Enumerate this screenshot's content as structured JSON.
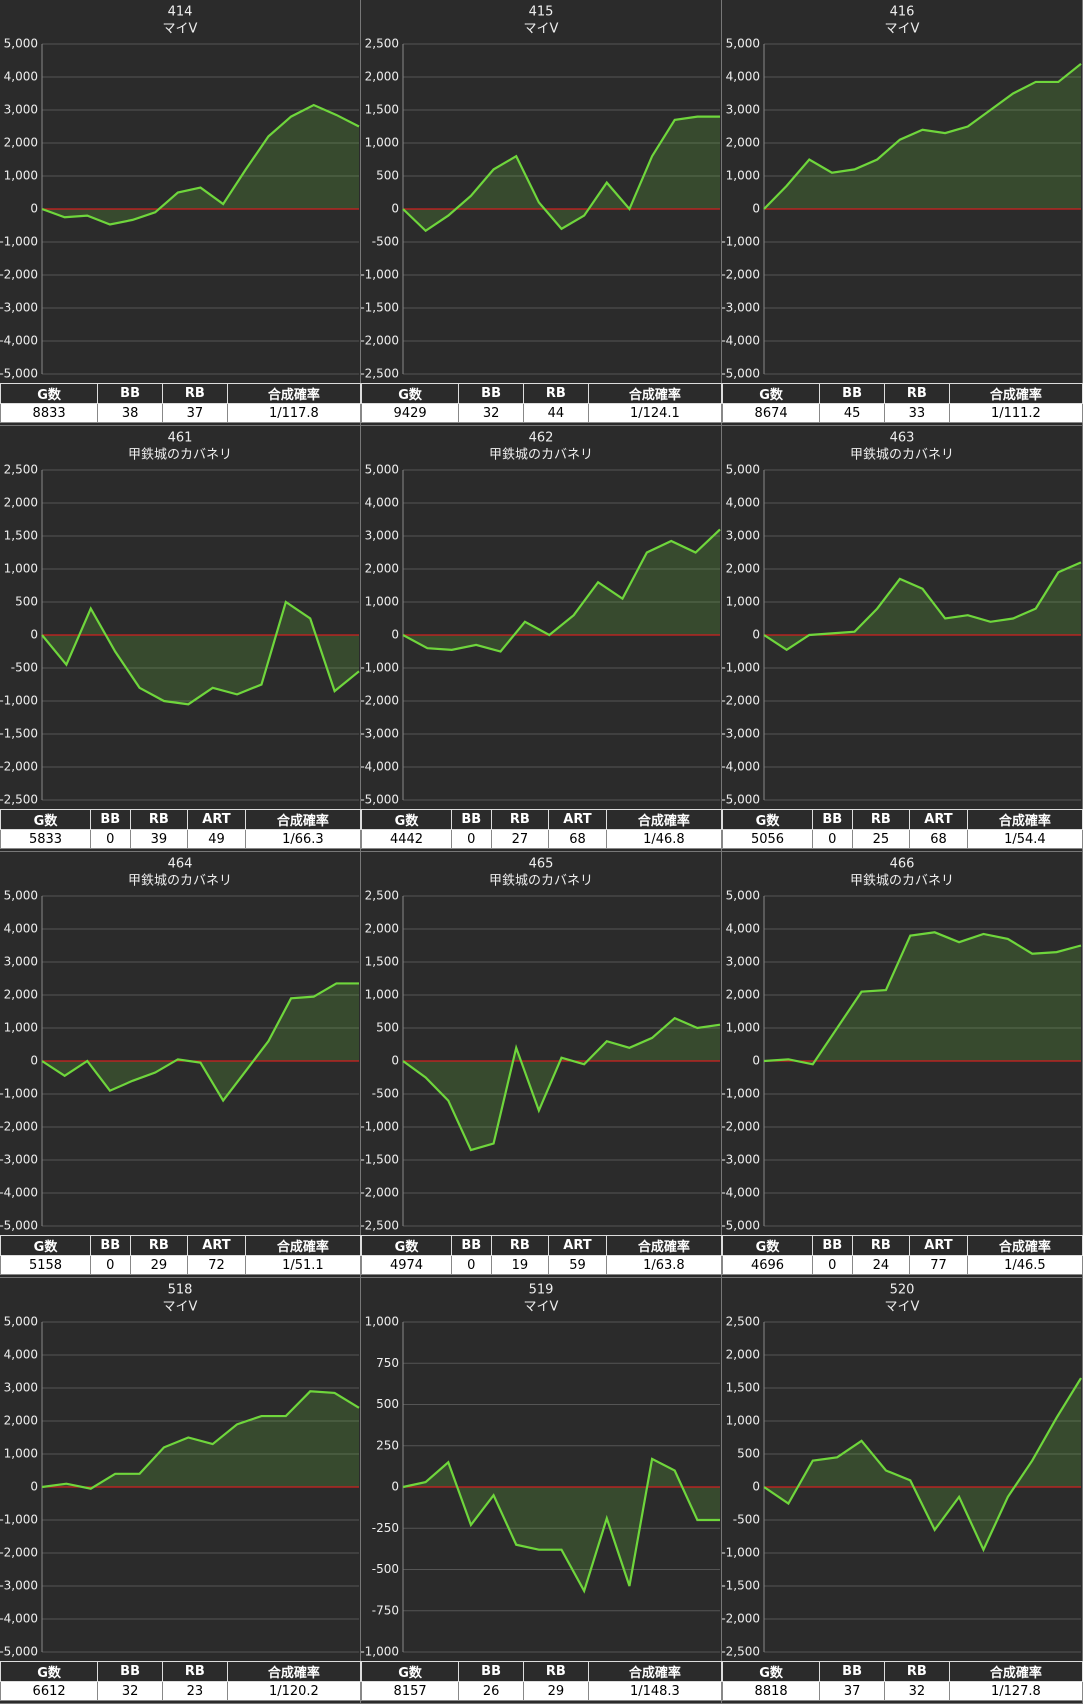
{
  "chart_data": [
    {
      "type": "line",
      "title": "414",
      "subtitle": "マイV",
      "color": "#6fd63c",
      "grid": true,
      "values": [
        0,
        -250,
        -200,
        -470,
        -330,
        -100,
        500,
        650,
        150,
        1200,
        2200,
        2800,
        3150,
        2850,
        2500
      ],
      "ylim": [
        -5000,
        5000
      ],
      "yticks": [
        {
          "value": -5000,
          "label": "-5,000"
        },
        {
          "value": -4000,
          "label": "-4,000"
        },
        {
          "value": -3000,
          "label": "-3,000"
        },
        {
          "value": -2000,
          "label": "-2,000"
        },
        {
          "value": -1000,
          "label": "-1,000"
        },
        0,
        {
          "value": 1000,
          "label": "1,000"
        },
        {
          "value": 2000,
          "label": "2,000"
        },
        {
          "value": 3000,
          "label": "3,000"
        },
        {
          "value": 4000,
          "label": "4,000"
        },
        {
          "value": 5000,
          "label": "5,000"
        }
      ],
      "table": {
        "header": [
          "G数",
          "BB",
          "RB",
          "合成確率"
        ],
        "rows": [
          [
            8833,
            38,
            37,
            "1/117.8"
          ]
        ]
      }
    },
    {
      "type": "line",
      "title": "415",
      "subtitle": "マイV",
      "color": "#6fd63c",
      "grid": true,
      "values": [
        0,
        -330,
        -100,
        200,
        600,
        800,
        100,
        -300,
        -100,
        400,
        0,
        800,
        1350,
        1400,
        1400
      ],
      "ylim": [
        -2500,
        2500
      ],
      "yticks": [
        {
          "value": -2500,
          "label": "-2,500"
        },
        {
          "value": -2000,
          "label": "-2,000"
        },
        {
          "value": -1500,
          "label": "-1,500"
        },
        {
          "value": -1000,
          "label": "-1,000"
        },
        -500,
        0,
        500,
        {
          "value": 1000,
          "label": "1,000"
        },
        {
          "value": 1500,
          "label": "1,500"
        },
        {
          "value": 2000,
          "label": "2,000"
        },
        {
          "value": 2500,
          "label": "2,500"
        }
      ],
      "table": {
        "header": [
          "G数",
          "BB",
          "RB",
          "合成確率"
        ],
        "rows": [
          [
            9429,
            32,
            44,
            "1/124.1"
          ]
        ]
      }
    },
    {
      "type": "line",
      "title": "416",
      "subtitle": "マイV",
      "color": "#6fd63c",
      "grid": true,
      "values": [
        0,
        700,
        1500,
        1100,
        1200,
        1500,
        2100,
        2400,
        2300,
        2500,
        3000,
        3500,
        3850,
        3850,
        4400
      ],
      "ylim": [
        -5000,
        5000
      ],
      "yticks": [
        {
          "value": -5000,
          "label": "-5,000"
        },
        {
          "value": -4000,
          "label": "-4,000"
        },
        {
          "value": -3000,
          "label": "-3,000"
        },
        {
          "value": -2000,
          "label": "-2,000"
        },
        {
          "value": -1000,
          "label": "-1,000"
        },
        0,
        {
          "value": 1000,
          "label": "1,000"
        },
        {
          "value": 2000,
          "label": "2,000"
        },
        {
          "value": 3000,
          "label": "3,000"
        },
        {
          "value": 4000,
          "label": "4,000"
        },
        {
          "value": 5000,
          "label": "5,000"
        }
      ],
      "table": {
        "header": [
          "G数",
          "BB",
          "RB",
          "合成確率"
        ],
        "rows": [
          [
            8674,
            45,
            33,
            "1/111.2"
          ]
        ]
      }
    },
    {
      "type": "line",
      "title": "461",
      "subtitle": "甲鉄城のカバネリ",
      "color": "#6fd63c",
      "grid": true,
      "values": [
        0,
        -450,
        400,
        -250,
        -800,
        -1000,
        -1050,
        -800,
        -900,
        -750,
        500,
        250,
        -850,
        -550
      ],
      "ylim": [
        -2500,
        2500
      ],
      "yticks": [
        {
          "value": -2500,
          "label": "-2,500"
        },
        {
          "value": -2000,
          "label": "-2,000"
        },
        {
          "value": -1500,
          "label": "-1,500"
        },
        {
          "value": -1000,
          "label": "-1,000"
        },
        -500,
        0,
        500,
        {
          "value": 1000,
          "label": "1,000"
        },
        {
          "value": 1500,
          "label": "1,500"
        },
        {
          "value": 2000,
          "label": "2,000"
        },
        {
          "value": 2500,
          "label": "2,500"
        }
      ],
      "table": {
        "header": [
          "G数",
          "BB",
          "RB",
          "ART",
          "合成確率"
        ],
        "rows": [
          [
            5833,
            0,
            39,
            49,
            "1/66.3"
          ]
        ]
      }
    },
    {
      "type": "line",
      "title": "462",
      "subtitle": "甲鉄城のカバネリ",
      "color": "#6fd63c",
      "grid": true,
      "values": [
        0,
        -400,
        -450,
        -300,
        -500,
        400,
        0,
        600,
        1600,
        1100,
        2500,
        2850,
        2500,
        3200
      ],
      "ylim": [
        -5000,
        5000
      ],
      "yticks": [
        {
          "value": -5000,
          "label": "-5,000"
        },
        {
          "value": -4000,
          "label": "-4,000"
        },
        {
          "value": -3000,
          "label": "-3,000"
        },
        {
          "value": -2000,
          "label": "-2,000"
        },
        {
          "value": -1000,
          "label": "-1,000"
        },
        0,
        {
          "value": 1000,
          "label": "1,000"
        },
        {
          "value": 2000,
          "label": "2,000"
        },
        {
          "value": 3000,
          "label": "3,000"
        },
        {
          "value": 4000,
          "label": "4,000"
        },
        {
          "value": 5000,
          "label": "5,000"
        }
      ],
      "table": {
        "header": [
          "G数",
          "BB",
          "RB",
          "ART",
          "合成確率"
        ],
        "rows": [
          [
            4442,
            0,
            27,
            68,
            "1/46.8"
          ]
        ]
      }
    },
    {
      "type": "line",
      "title": "463",
      "subtitle": "甲鉄城のカバネリ",
      "color": "#6fd63c",
      "grid": true,
      "values": [
        0,
        -450,
        0,
        50,
        100,
        800,
        1700,
        1400,
        500,
        600,
        400,
        500,
        800,
        1900,
        2200
      ],
      "ylim": [
        -5000,
        5000
      ],
      "yticks": [
        {
          "value": -5000,
          "label": "-5,000"
        },
        {
          "value": -4000,
          "label": "-4,000"
        },
        {
          "value": -3000,
          "label": "-3,000"
        },
        {
          "value": -2000,
          "label": "-2,000"
        },
        {
          "value": -1000,
          "label": "-1,000"
        },
        0,
        {
          "value": 1000,
          "label": "1,000"
        },
        {
          "value": 2000,
          "label": "2,000"
        },
        {
          "value": 3000,
          "label": "3,000"
        },
        {
          "value": 4000,
          "label": "4,000"
        },
        {
          "value": 5000,
          "label": "5,000"
        }
      ],
      "table": {
        "header": [
          "G数",
          "BB",
          "RB",
          "ART",
          "合成確率"
        ],
        "rows": [
          [
            5056,
            0,
            25,
            68,
            "1/54.4"
          ]
        ]
      }
    },
    {
      "type": "line",
      "title": "464",
      "subtitle": "甲鉄城のカバネリ",
      "color": "#6fd63c",
      "grid": true,
      "values": [
        0,
        -450,
        0,
        -900,
        -600,
        -350,
        50,
        -50,
        -1200,
        -300,
        600,
        1900,
        1950,
        2350,
        2350
      ],
      "ylim": [
        -5000,
        5000
      ],
      "yticks": [
        {
          "value": -5000,
          "label": "-5,000"
        },
        {
          "value": -4000,
          "label": "-4,000"
        },
        {
          "value": -3000,
          "label": "-3,000"
        },
        {
          "value": -2000,
          "label": "-2,000"
        },
        {
          "value": -1000,
          "label": "-1,000"
        },
        0,
        {
          "value": 1000,
          "label": "1,000"
        },
        {
          "value": 2000,
          "label": "2,000"
        },
        {
          "value": 3000,
          "label": "3,000"
        },
        {
          "value": 4000,
          "label": "4,000"
        },
        {
          "value": 5000,
          "label": "5,000"
        }
      ],
      "table": {
        "header": [
          "G数",
          "BB",
          "RB",
          "ART",
          "合成確率"
        ],
        "rows": [
          [
            5158,
            0,
            29,
            72,
            "1/51.1"
          ]
        ]
      }
    },
    {
      "type": "line",
      "title": "465",
      "subtitle": "甲鉄城のカバネリ",
      "color": "#6fd63c",
      "grid": true,
      "values": [
        0,
        -250,
        -600,
        -1350,
        -1250,
        200,
        -750,
        50,
        -50,
        300,
        200,
        350,
        650,
        500,
        550
      ],
      "ylim": [
        -2500,
        2500
      ],
      "yticks": [
        {
          "value": -2500,
          "label": "-2,500"
        },
        {
          "value": -2000,
          "label": "-2,000"
        },
        {
          "value": -1500,
          "label": "-1,500"
        },
        {
          "value": -1000,
          "label": "-1,000"
        },
        -500,
        0,
        500,
        {
          "value": 1000,
          "label": "1,000"
        },
        {
          "value": 1500,
          "label": "1,500"
        },
        {
          "value": 2000,
          "label": "2,000"
        },
        {
          "value": 2500,
          "label": "2,500"
        }
      ],
      "table": {
        "header": [
          "G数",
          "BB",
          "RB",
          "ART",
          "合成確率"
        ],
        "rows": [
          [
            4974,
            0,
            19,
            59,
            "1/63.8"
          ]
        ]
      }
    },
    {
      "type": "line",
      "title": "466",
      "subtitle": "甲鉄城のカバネリ",
      "color": "#6fd63c",
      "grid": true,
      "values": [
        0,
        50,
        -100,
        1000,
        2100,
        2150,
        3800,
        3900,
        3600,
        3850,
        3700,
        3250,
        3300,
        3500
      ],
      "ylim": [
        -5000,
        5000
      ],
      "yticks": [
        {
          "value": -5000,
          "label": "-5,000"
        },
        {
          "value": -4000,
          "label": "-4,000"
        },
        {
          "value": -3000,
          "label": "-3,000"
        },
        {
          "value": -2000,
          "label": "-2,000"
        },
        {
          "value": -1000,
          "label": "-1,000"
        },
        0,
        {
          "value": 1000,
          "label": "1,000"
        },
        {
          "value": 2000,
          "label": "2,000"
        },
        {
          "value": 3000,
          "label": "3,000"
        },
        {
          "value": 4000,
          "label": "4,000"
        },
        {
          "value": 5000,
          "label": "5,000"
        }
      ],
      "table": {
        "header": [
          "G数",
          "BB",
          "RB",
          "ART",
          "合成確率"
        ],
        "rows": [
          [
            4696,
            0,
            24,
            77,
            "1/46.5"
          ]
        ]
      }
    },
    {
      "type": "line",
      "title": "518",
      "subtitle": "マイV",
      "color": "#6fd63c",
      "grid": true,
      "values": [
        0,
        100,
        -50,
        400,
        400,
        1200,
        1500,
        1300,
        1900,
        2150,
        2150,
        2900,
        2850,
        2400
      ],
      "ylim": [
        -5000,
        5000
      ],
      "yticks": [
        {
          "value": -5000,
          "label": "-5,000"
        },
        {
          "value": -4000,
          "label": "-4,000"
        },
        {
          "value": -3000,
          "label": "-3,000"
        },
        {
          "value": -2000,
          "label": "-2,000"
        },
        {
          "value": -1000,
          "label": "-1,000"
        },
        0,
        {
          "value": 1000,
          "label": "1,000"
        },
        {
          "value": 2000,
          "label": "2,000"
        },
        {
          "value": 3000,
          "label": "3,000"
        },
        {
          "value": 4000,
          "label": "4,000"
        },
        {
          "value": 5000,
          "label": "5,000"
        }
      ],
      "table": {
        "header": [
          "G数",
          "BB",
          "RB",
          "合成確率"
        ],
        "rows": [
          [
            6612,
            32,
            23,
            "1/120.2"
          ]
        ]
      }
    },
    {
      "type": "line",
      "title": "519",
      "subtitle": "マイV",
      "color": "#6fd63c",
      "grid": true,
      "values": [
        0,
        30,
        150,
        -230,
        -50,
        -350,
        -380,
        -380,
        -630,
        -190,
        -600,
        170,
        100,
        -200,
        -200
      ],
      "ylim": [
        -1000,
        1000
      ],
      "yticks": [
        {
          "value": -1000,
          "label": "-1,000"
        },
        -750,
        -500,
        -250,
        0,
        250,
        500,
        750,
        {
          "value": 1000,
          "label": "1,000"
        }
      ],
      "table": {
        "header": [
          "G数",
          "BB",
          "RB",
          "合成確率"
        ],
        "rows": [
          [
            8157,
            26,
            29,
            "1/148.3"
          ]
        ]
      }
    },
    {
      "type": "line",
      "title": "520",
      "subtitle": "マイV",
      "color": "#6fd63c",
      "grid": true,
      "values": [
        0,
        -250,
        400,
        450,
        700,
        250,
        100,
        -650,
        -150,
        -950,
        -150,
        400,
        1050,
        1650
      ],
      "ylim": [
        -2500,
        2500
      ],
      "yticks": [
        {
          "value": -2500,
          "label": "-2,500"
        },
        {
          "value": -2000,
          "label": "-2,000"
        },
        {
          "value": -1500,
          "label": "-1,500"
        },
        {
          "value": -1000,
          "label": "-1,000"
        },
        -500,
        0,
        500,
        {
          "value": 1000,
          "label": "1,000"
        },
        {
          "value": 1500,
          "label": "1,500"
        },
        {
          "value": 2000,
          "label": "2,000"
        },
        {
          "value": 2500,
          "label": "2,500"
        }
      ],
      "table": {
        "header": [
          "G数",
          "BB",
          "RB",
          "合成確率"
        ],
        "rows": [
          [
            8818,
            37,
            32,
            "1/127.8"
          ]
        ]
      }
    }
  ]
}
